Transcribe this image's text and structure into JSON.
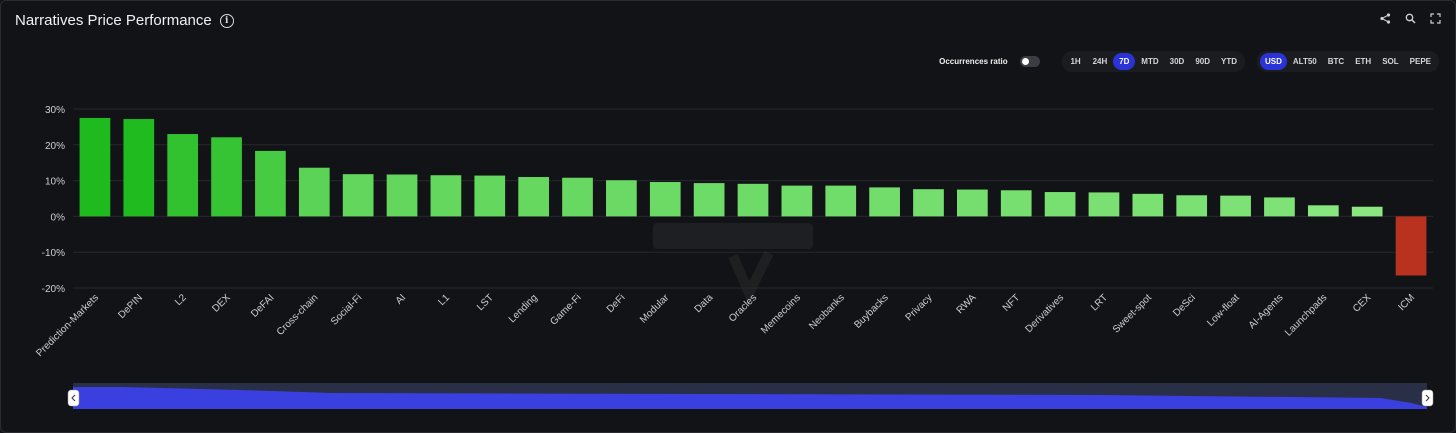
{
  "header": {
    "title": "Narratives Price Performance",
    "info_icon": "info-icon",
    "icons": [
      "share-icon",
      "search-icon",
      "fullscreen-icon"
    ]
  },
  "controls": {
    "occurrences_label": "Occurrences ratio",
    "timeframes": [
      "1H",
      "24H",
      "7D",
      "MTD",
      "30D",
      "90D",
      "YTD"
    ],
    "active_timeframe": "7D",
    "currencies": [
      "USD",
      "ALT50",
      "BTC",
      "ETH",
      "SOL",
      "PEPE"
    ],
    "active_currency": "USD"
  },
  "colors": {
    "background": "#121316",
    "accent": "#2b33d6",
    "negative": "#b8321f",
    "slider": "#3a3fe0"
  },
  "chart_data": {
    "type": "bar",
    "title": "Narratives Price Performance",
    "xlabel": "",
    "ylabel": "",
    "ylim": [
      -20,
      30
    ],
    "yticks": [
      "30%",
      "20%",
      "10%",
      "0%",
      "-10%",
      "-20%"
    ],
    "ytick_values": [
      30,
      20,
      10,
      0,
      -10,
      -20
    ],
    "grid": true,
    "categories": [
      "Prediction-Markets",
      "DePIN",
      "L2",
      "DEX",
      "DeFAI",
      "Cross-chain",
      "Social-Fi",
      "AI",
      "L1",
      "LST",
      "Lending",
      "Game-Fi",
      "DeFi",
      "Modular",
      "Data",
      "Oracles",
      "Memecoins",
      "Neobanks",
      "Buybacks",
      "Privacy",
      "RWA",
      "NFT",
      "Derivatives",
      "LRT",
      "Sweet-spot",
      "DeSci",
      "Low-float",
      "AI-Agents",
      "Launchpads",
      "CEX",
      "ICM"
    ],
    "values": [
      27.5,
      27.2,
      23.0,
      22.1,
      18.3,
      13.6,
      11.8,
      11.7,
      11.5,
      11.4,
      11.0,
      10.8,
      10.1,
      9.6,
      9.3,
      9.1,
      8.6,
      8.6,
      8.1,
      7.6,
      7.5,
      7.3,
      6.8,
      6.7,
      6.3,
      5.9,
      5.8,
      5.3,
      3.1,
      2.7,
      -16.5
    ]
  }
}
